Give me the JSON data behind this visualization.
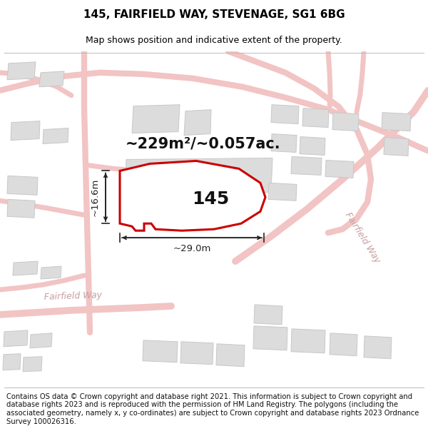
{
  "title": "145, FAIRFIELD WAY, STEVENAGE, SG1 6BG",
  "subtitle": "Map shows position and indicative extent of the property.",
  "footer": "Contains OS data © Crown copyright and database right 2021. This information is subject to Crown copyright and database rights 2023 and is reproduced with the permission of HM Land Registry. The polygons (including the associated geometry, namely x, y co-ordinates) are subject to Crown copyright and database rights 2023 Ordnance Survey 100026316.",
  "area_label": "~229m²/~0.057ac.",
  "number_label": "145",
  "width_label": "~29.0m",
  "height_label": "~16.6m",
  "bg_color": "#ffffff",
  "map_bg": "#f2f2f2",
  "road_color": "#f2c4c4",
  "building_face": "#dcdcdc",
  "building_edge": "#c8c8c8",
  "plot_fill": "#ffffff",
  "plot_edge": "#cc0000",
  "plot_lw": 2.2,
  "dim_color": "#222222",
  "street_label_color": "#c8a0a0",
  "title_fontsize": 11,
  "subtitle_fontsize": 9,
  "footer_fontsize": 7.2,
  "area_fontsize": 15,
  "num_fontsize": 18,
  "dim_fontsize": 9.5,
  "street_fontsize": 9
}
